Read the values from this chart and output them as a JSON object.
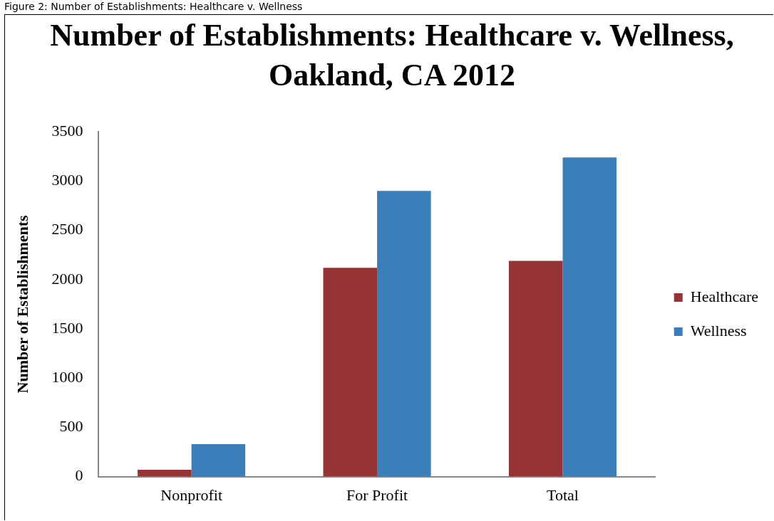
{
  "chart_data": {
    "type": "bar",
    "title": "Number of Establishments: Healthcare v. Wellness, Oakland, CA 2012",
    "ylabel": "Number of Establishments",
    "annotations": [
      "Figure 2: Number of Establishments: Healthcare v. Wellness"
    ],
    "categories": [
      "Nonprofit",
      "For Profit",
      "Total"
    ],
    "series": [
      {
        "name": "Healthcare",
        "color": "#953335",
        "values": [
          70,
          2120,
          2190
        ]
      },
      {
        "name": "Wellness",
        "color": "#3a7fba",
        "values": [
          330,
          2900,
          3240
        ]
      }
    ],
    "ylim": [
      0,
      3500
    ],
    "yticks": [
      0,
      500,
      1000,
      1500,
      2000,
      2500,
      3000,
      3500
    ],
    "grid": false,
    "legend": "right"
  }
}
